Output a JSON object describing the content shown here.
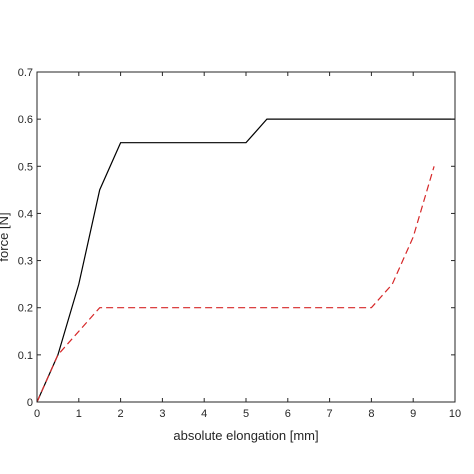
{
  "chart_data": {
    "type": "line",
    "title": "",
    "xlabel": "absolute elongation [mm]",
    "ylabel": "force [N]",
    "xlim": [
      0,
      10
    ],
    "ylim": [
      0,
      0.7
    ],
    "xticks": [
      "0",
      "1",
      "2",
      "3",
      "4",
      "5",
      "6",
      "7",
      "8",
      "9",
      "10"
    ],
    "yticks": [
      "0",
      "0.1",
      "0.2",
      "0.3",
      "0.4",
      "0.5",
      "0.6",
      "0.7"
    ],
    "grid": false,
    "legend": "none",
    "series": [
      {
        "color": "#000000",
        "style": "solid",
        "x": [
          0,
          0.5,
          1,
          1.5,
          2,
          5,
          5.5,
          10
        ],
        "y": [
          0,
          0.1,
          0.25,
          0.45,
          0.55,
          0.55,
          0.6,
          0.6
        ]
      },
      {
        "color": "#d62728",
        "style": "dashed",
        "x": [
          0,
          0.5,
          1.5,
          8,
          8.5,
          9,
          9.5
        ],
        "y": [
          0,
          0.1,
          0.2,
          0.2,
          0.25,
          0.35,
          0.5
        ]
      }
    ]
  }
}
